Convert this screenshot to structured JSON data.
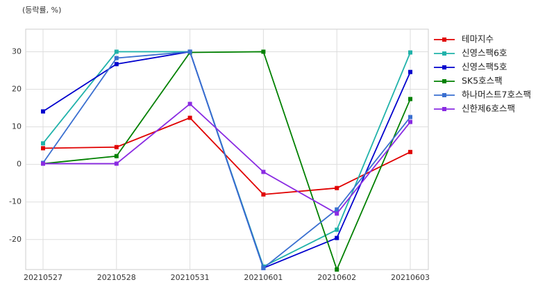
{
  "chart_data": {
    "type": "line",
    "ylabel": "(등락률, %)",
    "categories": [
      "20210527",
      "20210528",
      "20210531",
      "20210601",
      "20210602",
      "20210603"
    ],
    "ylim": [
      -28,
      36
    ],
    "yticks": [
      -20,
      -10,
      0,
      10,
      20,
      30
    ],
    "grid": true,
    "legend": "outside-right",
    "series": [
      {
        "name": "테마지수",
        "color": "#e00000",
        "values": [
          4.3,
          4.6,
          12.4,
          -8.0,
          -6.3,
          3.3
        ]
      },
      {
        "name": "신영스팩6호",
        "color": "#20b2aa",
        "values": [
          5.6,
          30,
          30,
          -27.2,
          -17.4,
          29.8
        ]
      },
      {
        "name": "신영스팩5호",
        "color": "#0000cd",
        "values": [
          14.1,
          26.7,
          30,
          -27.6,
          -19.6,
          24.6
        ]
      },
      {
        "name": "SK5호스팩",
        "color": "#008000",
        "values": [
          0.2,
          2.2,
          29.8,
          30,
          -28,
          17.4
        ]
      },
      {
        "name": "하나머스트7호스팩",
        "color": "#3a6fd0",
        "values": [
          0.4,
          28.3,
          30,
          -27.6,
          -12,
          12.6
        ]
      },
      {
        "name": "신한제6호스팩",
        "color": "#8a2be2",
        "values": [
          0.2,
          0.2,
          16.1,
          -2,
          -13.1,
          11.3
        ]
      }
    ]
  }
}
